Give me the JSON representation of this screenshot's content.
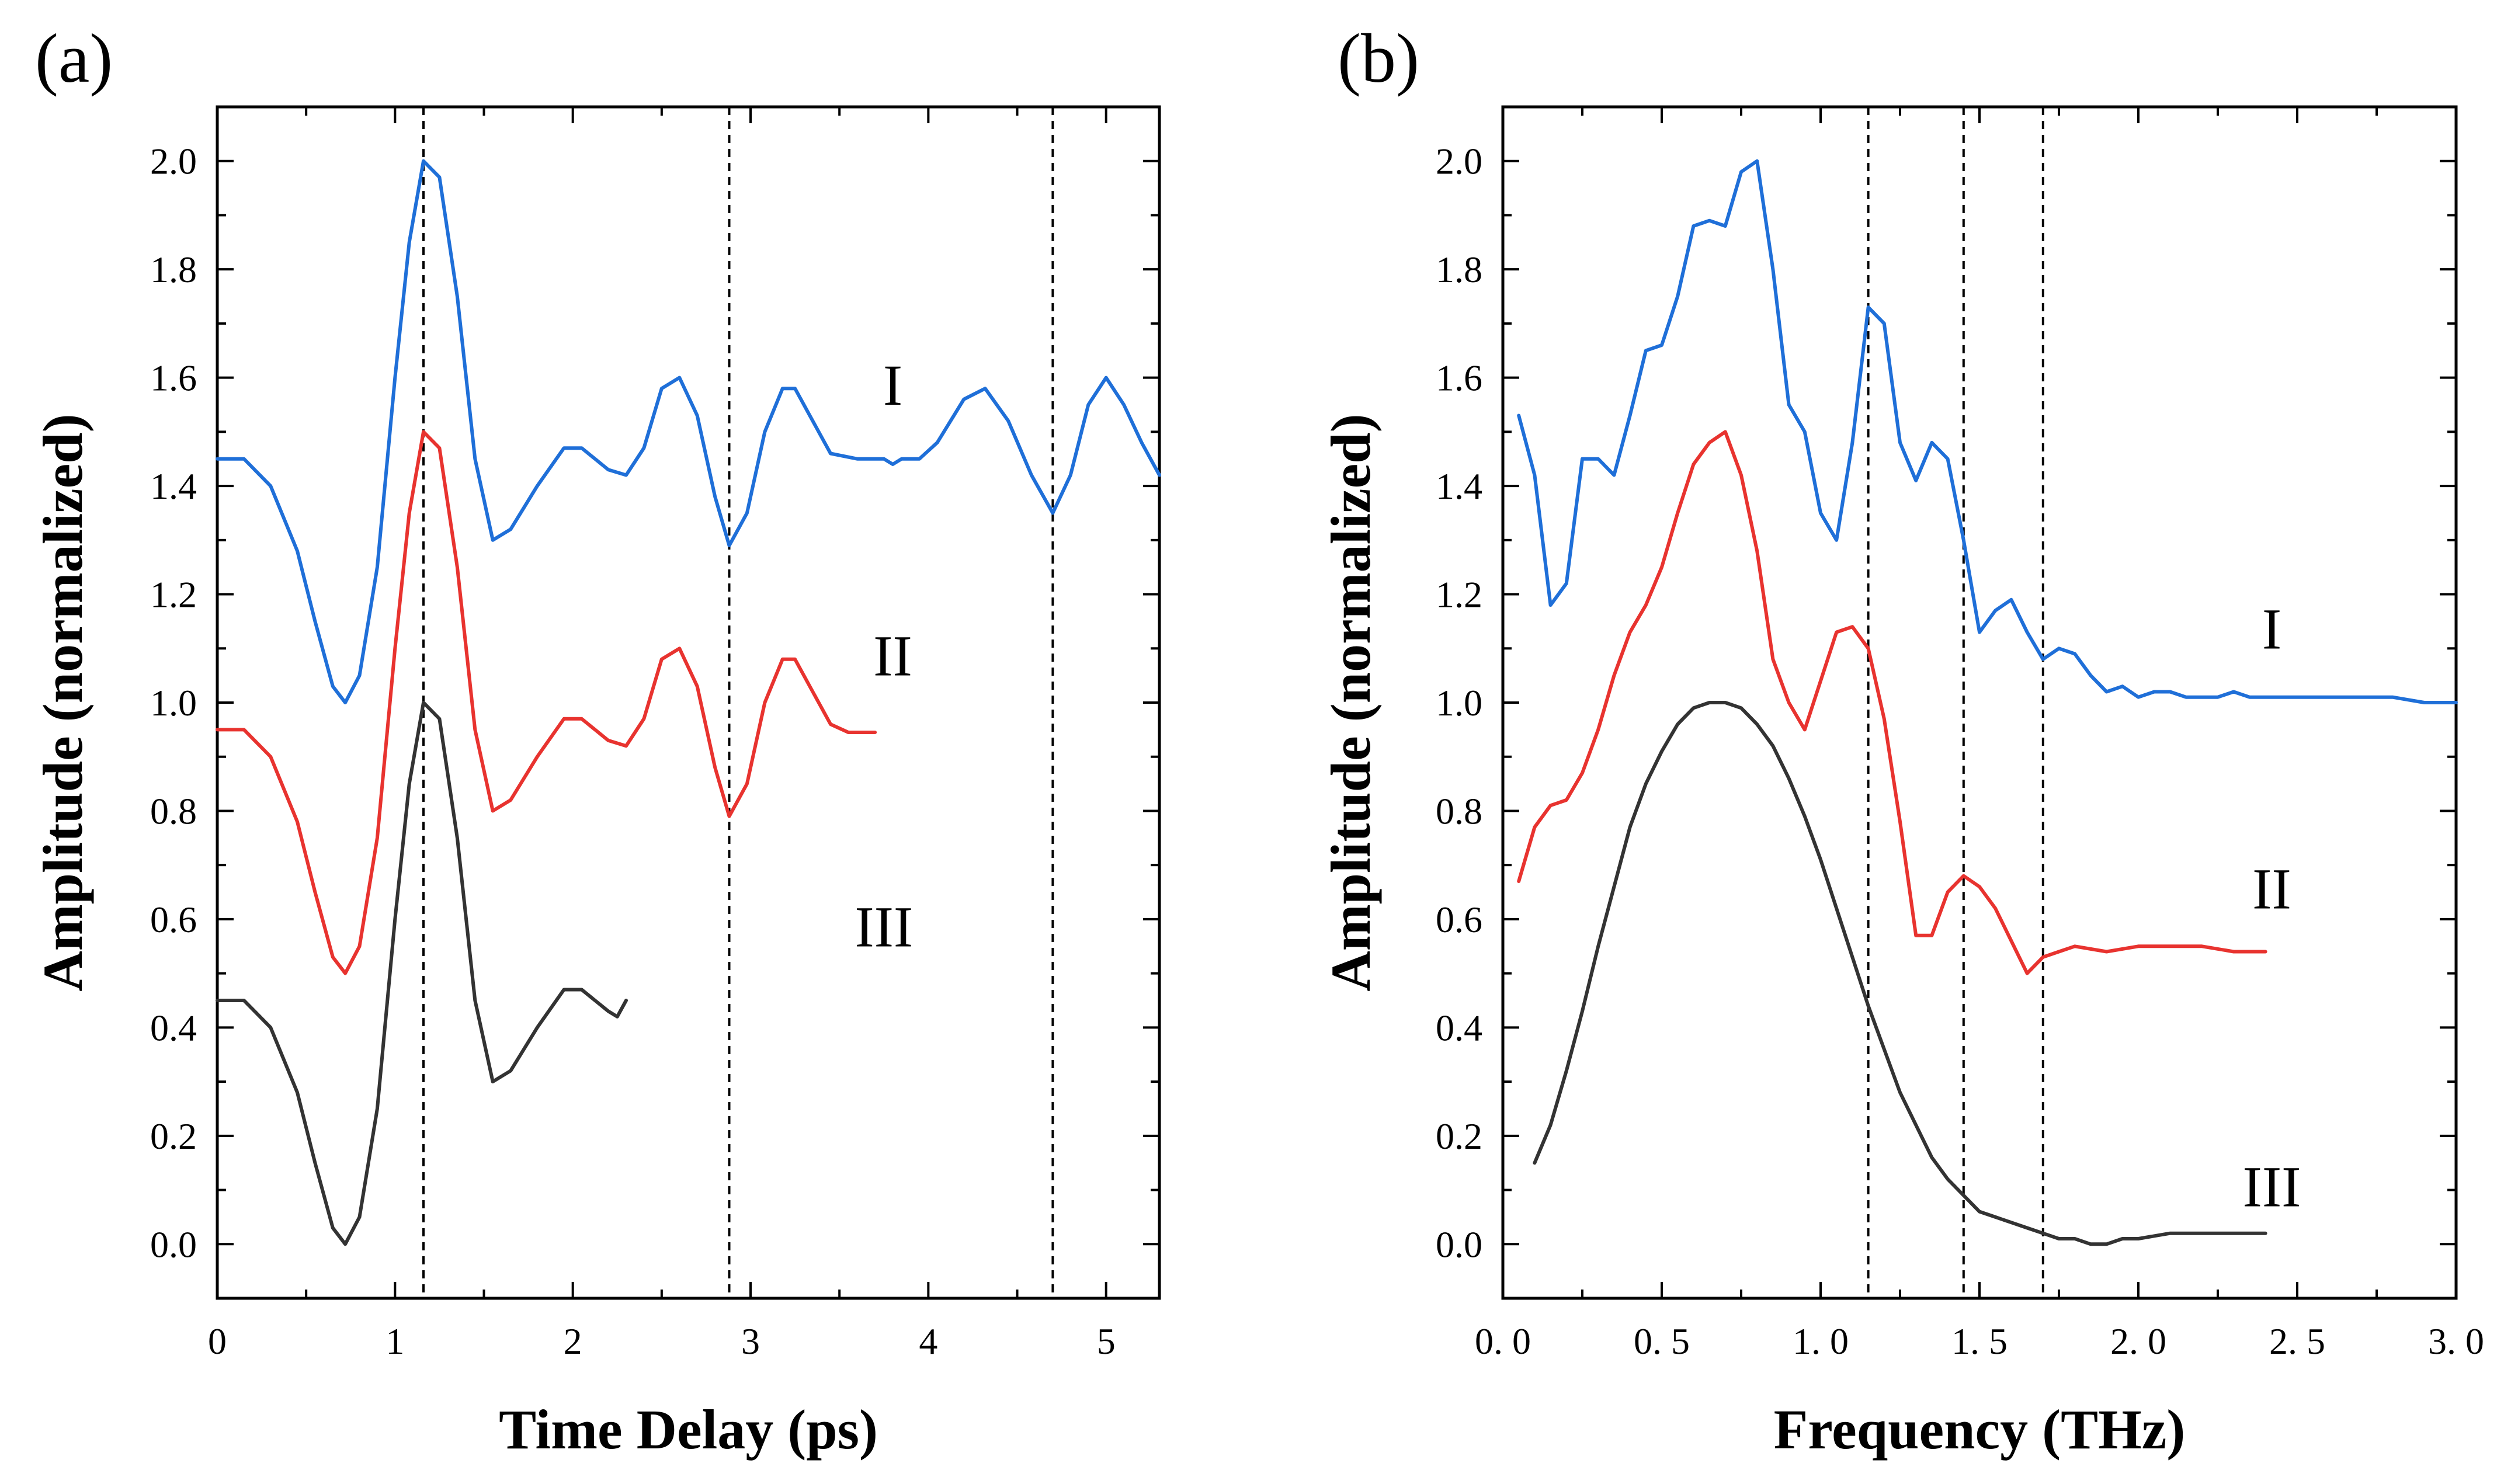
{
  "chart_data": [
    {
      "panel": "(a)",
      "type": "line",
      "xlabel": "Time Delay (ps)",
      "ylabel": "Amplitude (normalized)",
      "xlim": [
        0,
        5.3
      ],
      "ylim": [
        -0.1,
        2.1
      ],
      "xticks": [
        0,
        1,
        2,
        3,
        4,
        5
      ],
      "xtick_labels": [
        "0",
        "1",
        "2",
        "3",
        "4",
        "5"
      ],
      "yticks": [
        0.0,
        0.2,
        0.4,
        0.6,
        0.8,
        1.0,
        1.2,
        1.4,
        1.6,
        1.8,
        2.0
      ],
      "ytick_labels": [
        "0.0",
        "0.2",
        "0.4",
        "0.6",
        "0.8",
        "1.0",
        "1.2",
        "1.4",
        "1.6",
        "1.8",
        "2.0"
      ],
      "vlines": [
        1.16,
        2.88,
        4.7
      ],
      "grid": false,
      "series": [
        {
          "name": "I",
          "color": "#1f6fd8",
          "label_at": [
            3.8,
            1.55
          ],
          "points": [
            [
              0,
              1.45
            ],
            [
              0.15,
              1.45
            ],
            [
              0.3,
              1.4
            ],
            [
              0.45,
              1.28
            ],
            [
              0.55,
              1.15
            ],
            [
              0.65,
              1.03
            ],
            [
              0.72,
              1.0
            ],
            [
              0.8,
              1.05
            ],
            [
              0.9,
              1.25
            ],
            [
              1.0,
              1.6
            ],
            [
              1.08,
              1.85
            ],
            [
              1.16,
              2.0
            ],
            [
              1.25,
              1.97
            ],
            [
              1.35,
              1.75
            ],
            [
              1.45,
              1.45
            ],
            [
              1.55,
              1.3
            ],
            [
              1.65,
              1.32
            ],
            [
              1.8,
              1.4
            ],
            [
              1.95,
              1.47
            ],
            [
              2.05,
              1.47
            ],
            [
              2.2,
              1.43
            ],
            [
              2.3,
              1.42
            ],
            [
              2.4,
              1.47
            ],
            [
              2.5,
              1.58
            ],
            [
              2.6,
              1.6
            ],
            [
              2.7,
              1.53
            ],
            [
              2.8,
              1.38
            ],
            [
              2.88,
              1.29
            ],
            [
              2.98,
              1.35
            ],
            [
              3.08,
              1.5
            ],
            [
              3.18,
              1.58
            ],
            [
              3.25,
              1.58
            ],
            [
              3.35,
              1.52
            ],
            [
              3.45,
              1.46
            ],
            [
              3.6,
              1.45
            ],
            [
              3.75,
              1.45
            ],
            [
              3.8,
              1.44
            ],
            [
              3.85,
              1.45
            ],
            [
              3.95,
              1.45
            ],
            [
              4.05,
              1.48
            ],
            [
              4.2,
              1.56
            ],
            [
              4.32,
              1.58
            ],
            [
              4.45,
              1.52
            ],
            [
              4.58,
              1.42
            ],
            [
              4.7,
              1.35
            ],
            [
              4.8,
              1.42
            ],
            [
              4.9,
              1.55
            ],
            [
              5.0,
              1.6
            ],
            [
              5.1,
              1.55
            ],
            [
              5.2,
              1.48
            ],
            [
              5.3,
              1.42
            ]
          ]
        },
        {
          "name": "II",
          "color": "#e8332f",
          "label_at": [
            3.8,
            1.05
          ],
          "points": [
            [
              0,
              0.95
            ],
            [
              0.15,
              0.95
            ],
            [
              0.3,
              0.9
            ],
            [
              0.45,
              0.78
            ],
            [
              0.55,
              0.65
            ],
            [
              0.65,
              0.53
            ],
            [
              0.72,
              0.5
            ],
            [
              0.8,
              0.55
            ],
            [
              0.9,
              0.75
            ],
            [
              1.0,
              1.1
            ],
            [
              1.08,
              1.35
            ],
            [
              1.16,
              1.5
            ],
            [
              1.25,
              1.47
            ],
            [
              1.35,
              1.25
            ],
            [
              1.45,
              0.95
            ],
            [
              1.55,
              0.8
            ],
            [
              1.65,
              0.82
            ],
            [
              1.8,
              0.9
            ],
            [
              1.95,
              0.97
            ],
            [
              2.05,
              0.97
            ],
            [
              2.2,
              0.93
            ],
            [
              2.3,
              0.92
            ],
            [
              2.4,
              0.97
            ],
            [
              2.5,
              1.08
            ],
            [
              2.6,
              1.1
            ],
            [
              2.7,
              1.03
            ],
            [
              2.8,
              0.88
            ],
            [
              2.88,
              0.79
            ],
            [
              2.98,
              0.85
            ],
            [
              3.08,
              1.0
            ],
            [
              3.18,
              1.08
            ],
            [
              3.25,
              1.08
            ],
            [
              3.35,
              1.02
            ],
            [
              3.45,
              0.96
            ],
            [
              3.55,
              0.945
            ],
            [
              3.7,
              0.945
            ]
          ]
        },
        {
          "name": "III",
          "color": "#333333",
          "label_at": [
            3.75,
            0.55
          ],
          "points": [
            [
              0,
              0.45
            ],
            [
              0.15,
              0.45
            ],
            [
              0.3,
              0.4
            ],
            [
              0.45,
              0.28
            ],
            [
              0.55,
              0.15
            ],
            [
              0.65,
              0.03
            ],
            [
              0.72,
              0.0
            ],
            [
              0.8,
              0.05
            ],
            [
              0.9,
              0.25
            ],
            [
              1.0,
              0.6
            ],
            [
              1.08,
              0.85
            ],
            [
              1.16,
              1.0
            ],
            [
              1.25,
              0.97
            ],
            [
              1.35,
              0.75
            ],
            [
              1.45,
              0.45
            ],
            [
              1.55,
              0.3
            ],
            [
              1.65,
              0.32
            ],
            [
              1.8,
              0.4
            ],
            [
              1.95,
              0.47
            ],
            [
              2.05,
              0.47
            ],
            [
              2.2,
              0.43
            ],
            [
              2.25,
              0.42
            ],
            [
              2.3,
              0.45
            ]
          ]
        }
      ]
    },
    {
      "panel": "(b)",
      "type": "line",
      "xlabel": "Frequency (THz)",
      "ylabel": "Amplitude (normalized)",
      "xlim": [
        0,
        3.0
      ],
      "ylim": [
        -0.1,
        2.1
      ],
      "xticks": [
        0,
        0.5,
        1.0,
        1.5,
        2.0,
        2.5,
        3.0
      ],
      "xtick_labels": [
        "0. 0",
        "0. 5",
        "1. 0",
        "1. 5",
        "2. 0",
        "2. 5",
        "3. 0"
      ],
      "yticks": [
        0.0,
        0.2,
        0.4,
        0.6,
        0.8,
        1.0,
        1.2,
        1.4,
        1.6,
        1.8,
        2.0
      ],
      "ytick_labels": [
        "0.0",
        "0.2",
        "0.4",
        "0.6",
        "0.8",
        "1.0",
        "1.2",
        "1.4",
        "1.6",
        "1.8",
        "2.0"
      ],
      "vlines": [
        1.15,
        1.45,
        1.7
      ],
      "grid": false,
      "series": [
        {
          "name": "I",
          "color": "#1f6fd8",
          "label_at": [
            2.42,
            1.1
          ],
          "points": [
            [
              0.05,
              1.53
            ],
            [
              0.1,
              1.42
            ],
            [
              0.15,
              1.18
            ],
            [
              0.2,
              1.22
            ],
            [
              0.25,
              1.45
            ],
            [
              0.3,
              1.45
            ],
            [
              0.35,
              1.42
            ],
            [
              0.4,
              1.53
            ],
            [
              0.45,
              1.65
            ],
            [
              0.5,
              1.66
            ],
            [
              0.55,
              1.75
            ],
            [
              0.6,
              1.88
            ],
            [
              0.65,
              1.89
            ],
            [
              0.7,
              1.88
            ],
            [
              0.75,
              1.98
            ],
            [
              0.8,
              2.0
            ],
            [
              0.85,
              1.8
            ],
            [
              0.9,
              1.55
            ],
            [
              0.95,
              1.5
            ],
            [
              1.0,
              1.35
            ],
            [
              1.05,
              1.3
            ],
            [
              1.1,
              1.48
            ],
            [
              1.15,
              1.73
            ],
            [
              1.2,
              1.7
            ],
            [
              1.25,
              1.48
            ],
            [
              1.3,
              1.41
            ],
            [
              1.35,
              1.48
            ],
            [
              1.4,
              1.45
            ],
            [
              1.45,
              1.3
            ],
            [
              1.5,
              1.13
            ],
            [
              1.55,
              1.17
            ],
            [
              1.6,
              1.19
            ],
            [
              1.65,
              1.13
            ],
            [
              1.7,
              1.08
            ],
            [
              1.75,
              1.1
            ],
            [
              1.8,
              1.09
            ],
            [
              1.85,
              1.05
            ],
            [
              1.9,
              1.02
            ],
            [
              1.95,
              1.03
            ],
            [
              2.0,
              1.01
            ],
            [
              2.05,
              1.02
            ],
            [
              2.1,
              1.02
            ],
            [
              2.15,
              1.01
            ],
            [
              2.2,
              1.01
            ],
            [
              2.25,
              1.01
            ],
            [
              2.3,
              1.02
            ],
            [
              2.35,
              1.01
            ],
            [
              2.4,
              1.01
            ],
            [
              2.45,
              1.01
            ],
            [
              2.5,
              1.01
            ],
            [
              2.6,
              1.01
            ],
            [
              2.7,
              1.01
            ],
            [
              2.8,
              1.01
            ],
            [
              2.9,
              1.0
            ],
            [
              3.0,
              1.0
            ]
          ]
        },
        {
          "name": "II",
          "color": "#e8332f",
          "label_at": [
            2.42,
            0.62
          ],
          "points": [
            [
              0.05,
              0.67
            ],
            [
              0.1,
              0.77
            ],
            [
              0.15,
              0.81
            ],
            [
              0.2,
              0.82
            ],
            [
              0.25,
              0.87
            ],
            [
              0.3,
              0.95
            ],
            [
              0.35,
              1.05
            ],
            [
              0.4,
              1.13
            ],
            [
              0.45,
              1.18
            ],
            [
              0.5,
              1.25
            ],
            [
              0.55,
              1.35
            ],
            [
              0.6,
              1.44
            ],
            [
              0.65,
              1.48
            ],
            [
              0.7,
              1.5
            ],
            [
              0.75,
              1.42
            ],
            [
              0.8,
              1.28
            ],
            [
              0.85,
              1.08
            ],
            [
              0.9,
              1.0
            ],
            [
              0.95,
              0.95
            ],
            [
              1.0,
              1.04
            ],
            [
              1.05,
              1.13
            ],
            [
              1.1,
              1.14
            ],
            [
              1.15,
              1.1
            ],
            [
              1.2,
              0.97
            ],
            [
              1.25,
              0.78
            ],
            [
              1.3,
              0.57
            ],
            [
              1.35,
              0.57
            ],
            [
              1.4,
              0.65
            ],
            [
              1.45,
              0.68
            ],
            [
              1.5,
              0.66
            ],
            [
              1.55,
              0.62
            ],
            [
              1.6,
              0.56
            ],
            [
              1.65,
              0.5
            ],
            [
              1.7,
              0.53
            ],
            [
              1.75,
              0.54
            ],
            [
              1.8,
              0.55
            ],
            [
              1.9,
              0.54
            ],
            [
              2.0,
              0.55
            ],
            [
              2.1,
              0.55
            ],
            [
              2.2,
              0.55
            ],
            [
              2.3,
              0.54
            ],
            [
              2.4,
              0.54
            ]
          ]
        },
        {
          "name": "III",
          "color": "#333333",
          "label_at": [
            2.42,
            0.07
          ],
          "points": [
            [
              0.1,
              0.15
            ],
            [
              0.15,
              0.22
            ],
            [
              0.2,
              0.32
            ],
            [
              0.25,
              0.43
            ],
            [
              0.3,
              0.55
            ],
            [
              0.35,
              0.66
            ],
            [
              0.4,
              0.77
            ],
            [
              0.45,
              0.85
            ],
            [
              0.5,
              0.91
            ],
            [
              0.55,
              0.96
            ],
            [
              0.6,
              0.99
            ],
            [
              0.65,
              1.0
            ],
            [
              0.7,
              1.0
            ],
            [
              0.75,
              0.99
            ],
            [
              0.8,
              0.96
            ],
            [
              0.85,
              0.92
            ],
            [
              0.9,
              0.86
            ],
            [
              0.95,
              0.79
            ],
            [
              1.0,
              0.71
            ],
            [
              1.05,
              0.62
            ],
            [
              1.1,
              0.53
            ],
            [
              1.15,
              0.44
            ],
            [
              1.2,
              0.36
            ],
            [
              1.25,
              0.28
            ],
            [
              1.3,
              0.22
            ],
            [
              1.35,
              0.16
            ],
            [
              1.4,
              0.12
            ],
            [
              1.45,
              0.09
            ],
            [
              1.5,
              0.06
            ],
            [
              1.55,
              0.05
            ],
            [
              1.6,
              0.04
            ],
            [
              1.65,
              0.03
            ],
            [
              1.7,
              0.02
            ],
            [
              1.75,
              0.01
            ],
            [
              1.8,
              0.01
            ],
            [
              1.85,
              0.0
            ],
            [
              1.9,
              0.0
            ],
            [
              1.95,
              0.01
            ],
            [
              2.0,
              0.01
            ],
            [
              2.1,
              0.02
            ],
            [
              2.2,
              0.02
            ],
            [
              2.3,
              0.02
            ],
            [
              2.4,
              0.02
            ]
          ]
        }
      ]
    }
  ]
}
